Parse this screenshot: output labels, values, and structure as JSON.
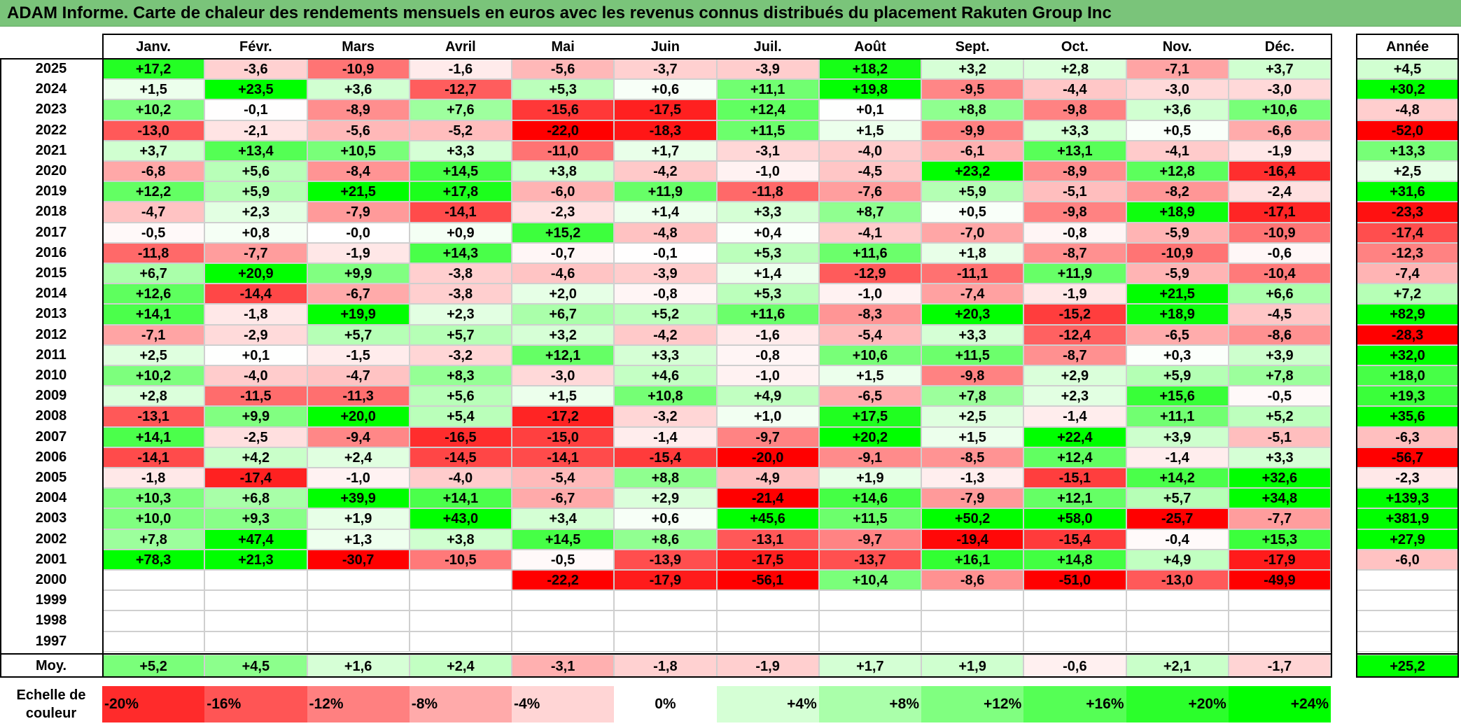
{
  "title": "ADAM Informe. Carte de chaleur des rendements mensuels en euros avec les revenus connus distribués du placement Rakuten Group Inc",
  "colors": {
    "title_bg": "#7ac47a",
    "neg_max": "#ff0000",
    "pos_max": "#00ff00",
    "neutral": "#ffffff"
  },
  "chart_data": {
    "type": "heatmap",
    "title": "ADAM Informe. Carte de chaleur des rendements mensuels en euros avec les revenus connus distribués du placement Rakuten Group Inc",
    "months": [
      "Janv.",
      "Févr.",
      "Mars",
      "Avril",
      "Mai",
      "Juin",
      "Juil.",
      "Août",
      "Sept.",
      "Oct.",
      "Nov.",
      "Déc."
    ],
    "year_header": "Année",
    "rows": [
      {
        "year": "2025",
        "values": [
          "+17,2",
          "-3,6",
          "-10,9",
          "-1,6",
          "-5,6",
          "-3,7",
          "-3,9",
          "+18,2",
          "+3,2",
          "+2,8",
          "-7,1",
          "+3,7"
        ],
        "annual": "+4,5"
      },
      {
        "year": "2024",
        "values": [
          "+1,5",
          "+23,5",
          "+3,6",
          "-12,7",
          "+5,3",
          "+0,6",
          "+11,1",
          "+19,8",
          "-9,5",
          "-4,4",
          "-3,0",
          "-3,0"
        ],
        "annual": "+30,2"
      },
      {
        "year": "2023",
        "values": [
          "+10,2",
          "-0,1",
          "-8,9",
          "+7,6",
          "-15,6",
          "-17,5",
          "+12,4",
          "+0,1",
          "+8,8",
          "-9,8",
          "+3,6",
          "+10,6"
        ],
        "annual": "-4,8"
      },
      {
        "year": "2022",
        "values": [
          "-13,0",
          "-2,1",
          "-5,6",
          "-5,2",
          "-22,0",
          "-18,3",
          "+11,5",
          "+1,5",
          "-9,9",
          "+3,3",
          "+0,5",
          "-6,6"
        ],
        "annual": "-52,0"
      },
      {
        "year": "2021",
        "values": [
          "+3,7",
          "+13,4",
          "+10,5",
          "+3,3",
          "-11,0",
          "+1,7",
          "-3,1",
          "-4,0",
          "-6,1",
          "+13,1",
          "-4,1",
          "-1,9"
        ],
        "annual": "+13,3"
      },
      {
        "year": "2020",
        "values": [
          "-6,8",
          "+5,6",
          "-8,4",
          "+14,5",
          "+3,8",
          "-4,2",
          "-1,0",
          "-4,5",
          "+23,2",
          "-8,9",
          "+12,8",
          "-16,4"
        ],
        "annual": "+2,5"
      },
      {
        "year": "2019",
        "values": [
          "+12,2",
          "+5,9",
          "+21,5",
          "+17,8",
          "-6,0",
          "+11,9",
          "-11,8",
          "-7,6",
          "+5,9",
          "-5,1",
          "-8,2",
          "-2,4"
        ],
        "annual": "+31,6"
      },
      {
        "year": "2018",
        "values": [
          "-4,7",
          "+2,3",
          "-7,9",
          "-14,1",
          "-2,3",
          "+1,4",
          "+3,3",
          "+8,7",
          "+0,5",
          "-9,8",
          "+18,9",
          "-17,1"
        ],
        "annual": "-23,3"
      },
      {
        "year": "2017",
        "values": [
          "-0,5",
          "+0,8",
          "-0,0",
          "+0,9",
          "+15,2",
          "-4,8",
          "+0,4",
          "-4,1",
          "-7,0",
          "-0,8",
          "-5,9",
          "-10,9"
        ],
        "annual": "-17,4"
      },
      {
        "year": "2016",
        "values": [
          "-11,8",
          "-7,7",
          "-1,9",
          "+14,3",
          "-0,7",
          "-0,1",
          "+5,3",
          "+11,6",
          "+1,8",
          "-8,7",
          "-10,9",
          "-0,6"
        ],
        "annual": "-12,3"
      },
      {
        "year": "2015",
        "values": [
          "+6,7",
          "+20,9",
          "+9,9",
          "-3,8",
          "-4,6",
          "-3,9",
          "+1,4",
          "-12,9",
          "-11,1",
          "+11,9",
          "-5,9",
          "-10,4"
        ],
        "annual": "-7,4"
      },
      {
        "year": "2014",
        "values": [
          "+12,6",
          "-14,4",
          "-6,7",
          "-3,8",
          "+2,0",
          "-0,8",
          "+5,3",
          "-1,0",
          "-7,4",
          "-1,9",
          "+21,5",
          "+6,6"
        ],
        "annual": "+7,2"
      },
      {
        "year": "2013",
        "values": [
          "+14,1",
          "-1,8",
          "+19,9",
          "+2,3",
          "+6,7",
          "+5,2",
          "+11,6",
          "-8,3",
          "+20,3",
          "-15,2",
          "+18,9",
          "-4,5"
        ],
        "annual": "+82,9"
      },
      {
        "year": "2012",
        "values": [
          "-7,1",
          "-2,9",
          "+5,7",
          "+5,7",
          "+3,2",
          "-4,2",
          "-1,6",
          "-5,4",
          "+3,3",
          "-12,4",
          "-6,5",
          "-8,6"
        ],
        "annual": "-28,3"
      },
      {
        "year": "2011",
        "values": [
          "+2,5",
          "+0,1",
          "-1,5",
          "-3,2",
          "+12,1",
          "+3,3",
          "-0,8",
          "+10,6",
          "+11,5",
          "-8,7",
          "+0,3",
          "+3,9"
        ],
        "annual": "+32,0"
      },
      {
        "year": "2010",
        "values": [
          "+10,2",
          "-4,0",
          "-4,7",
          "+8,3",
          "-3,0",
          "+4,6",
          "-1,0",
          "+1,5",
          "-9,8",
          "+2,9",
          "+5,9",
          "+7,8"
        ],
        "annual": "+18,0"
      },
      {
        "year": "2009",
        "values": [
          "+2,8",
          "-11,5",
          "-11,3",
          "+5,6",
          "+1,5",
          "+10,8",
          "+4,9",
          "-6,5",
          "+7,8",
          "+2,3",
          "+15,6",
          "-0,5"
        ],
        "annual": "+19,3"
      },
      {
        "year": "2008",
        "values": [
          "-13,1",
          "+9,9",
          "+20,0",
          "+5,4",
          "-17,2",
          "-3,2",
          "+1,0",
          "+17,5",
          "+2,5",
          "-1,4",
          "+11,1",
          "+5,2"
        ],
        "annual": "+35,6"
      },
      {
        "year": "2007",
        "values": [
          "+14,1",
          "-2,5",
          "-9,4",
          "-16,5",
          "-15,0",
          "-1,4",
          "-9,7",
          "+20,2",
          "+1,5",
          "+22,4",
          "+3,9",
          "-5,1"
        ],
        "annual": "-6,3"
      },
      {
        "year": "2006",
        "values": [
          "-14,1",
          "+4,2",
          "+2,4",
          "-14,5",
          "-14,1",
          "-15,4",
          "-20,0",
          "-9,1",
          "-8,5",
          "+12,4",
          "-1,4",
          "+3,3"
        ],
        "annual": "-56,7"
      },
      {
        "year": "2005",
        "values": [
          "-1,8",
          "-17,4",
          "-1,0",
          "-4,0",
          "-5,4",
          "+8,8",
          "-4,9",
          "+1,9",
          "-1,3",
          "-15,1",
          "+14,2",
          "+32,6"
        ],
        "annual": "-2,3"
      },
      {
        "year": "2004",
        "values": [
          "+10,3",
          "+6,8",
          "+39,9",
          "+14,1",
          "-6,7",
          "+2,9",
          "-21,4",
          "+14,6",
          "-7,9",
          "+12,1",
          "+5,7",
          "+34,8"
        ],
        "annual": "+139,3"
      },
      {
        "year": "2003",
        "values": [
          "+10,0",
          "+9,3",
          "+1,9",
          "+43,0",
          "+3,4",
          "+0,6",
          "+45,6",
          "+11,5",
          "+50,2",
          "+58,0",
          "-25,7",
          "-7,7"
        ],
        "annual": "+381,9"
      },
      {
        "year": "2002",
        "values": [
          "+7,8",
          "+47,4",
          "+1,3",
          "+3,8",
          "+14,5",
          "+8,6",
          "-13,1",
          "-9,7",
          "-19,4",
          "-15,4",
          "-0,4",
          "+15,3"
        ],
        "annual": "+27,9"
      },
      {
        "year": "2001",
        "values": [
          "+78,3",
          "+21,3",
          "-30,7",
          "-10,5",
          "-0,5",
          "-13,9",
          "-17,5",
          "-13,7",
          "+16,1",
          "+14,8",
          "+4,9",
          "-17,9"
        ],
        "annual": "-6,0"
      },
      {
        "year": "2000",
        "values": [
          "",
          "",
          "",
          "",
          "-22,2",
          "-17,9",
          "-56,1",
          "+10,4",
          "-8,6",
          "-51,0",
          "-13,0",
          "-49,9"
        ],
        "annual": ""
      },
      {
        "year": "1999",
        "values": [
          "",
          "",
          "",
          "",
          "",
          "",
          "",
          "",
          "",
          "",
          "",
          ""
        ],
        "annual": ""
      },
      {
        "year": "1998",
        "values": [
          "",
          "",
          "",
          "",
          "",
          "",
          "",
          "",
          "",
          "",
          "",
          ""
        ],
        "annual": ""
      },
      {
        "year": "1997",
        "values": [
          "",
          "",
          "",
          "",
          "",
          "",
          "",
          "",
          "",
          "",
          "",
          ""
        ],
        "annual": ""
      }
    ],
    "average": {
      "label": "Moy.",
      "values": [
        "+5,2",
        "+4,5",
        "+1,6",
        "+2,4",
        "-3,1",
        "-1,8",
        "-1,9",
        "+1,7",
        "+1,9",
        "-0,6",
        "+2,1",
        "-1,7"
      ],
      "annual": "+25,2"
    },
    "scale": {
      "label": "Echelle de couleur",
      "items": [
        {
          "label": "-20%",
          "value": -20
        },
        {
          "label": "-16%",
          "value": -16
        },
        {
          "label": "-12%",
          "value": -12
        },
        {
          "label": "-8%",
          "value": -8
        },
        {
          "label": "-4%",
          "value": -4
        },
        {
          "label": "0%",
          "value": 0
        },
        {
          "label": "+4%",
          "value": 4
        },
        {
          "label": "+8%",
          "value": 8
        },
        {
          "label": "+12%",
          "value": 12
        },
        {
          "label": "+16%",
          "value": 16
        },
        {
          "label": "+20%",
          "value": 20
        },
        {
          "label": "+24%",
          "value": 24
        }
      ]
    }
  }
}
